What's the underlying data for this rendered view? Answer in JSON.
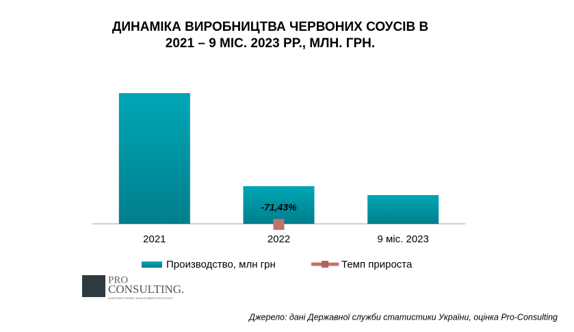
{
  "chart_data": {
    "type": "bar",
    "title": [
      "ДИНАМІКА ВИРОБНИЦТВА ЧЕРВОНИХ СОУСІВ В",
      "2021 – 9 МІС. 2023 РР., МЛН. ГРН."
    ],
    "categories": [
      "2021",
      "2022",
      "9 міс. 2023"
    ],
    "series": [
      {
        "name": "Производство, млн грн",
        "color": "#00a3b4",
        "values": [
          191,
          55,
          42
        ]
      },
      {
        "name": "Темп прироста",
        "color": "#c0736e",
        "type": "line",
        "axis": "y2",
        "values": [
          null,
          -71.43,
          null
        ],
        "value_labels": [
          null,
          "-71,43%",
          null
        ]
      }
    ],
    "ylim": [
      0,
      200
    ],
    "y2lim": [
      -100,
      5000
    ],
    "legend": "bottom"
  },
  "logo": {
    "name": [
      "PRO",
      "CONSULTING."
    ],
    "tagline": "АНАЛІТИКА РИНКІВ, ФІНАНСОВИЙ КОНСАЛТИНГ"
  },
  "source": "Джерело: дані Державної служби статистики  України, оцінка Pro-Consulting"
}
